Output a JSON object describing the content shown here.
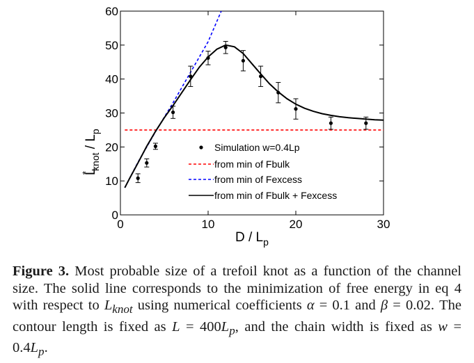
{
  "chart_data": {
    "type": "line",
    "xlabel": "D / L",
    "xlabel_sub": "p",
    "ylabel_base": "L",
    "ylabel_sup": "*",
    "ylabel_sub": "knot",
    "ylabel_rest": " / L",
    "ylabel_sub2": "p",
    "xlim": [
      0,
      30
    ],
    "ylim": [
      0,
      60
    ],
    "xticks": [
      0,
      10,
      20,
      30
    ],
    "yticks": [
      0,
      10,
      20,
      30,
      40,
      50,
      60
    ],
    "grid": false,
    "legend_position": "lower-center",
    "series": [
      {
        "name": "Simulation w=0.4Lp",
        "kind": "points",
        "color": "#000000",
        "points": [
          {
            "x": 2,
            "y": 10.8,
            "err": 1.3
          },
          {
            "x": 3,
            "y": 15.3,
            "err": 1.2
          },
          {
            "x": 4,
            "y": 20.2,
            "err": 0.9
          },
          {
            "x": 6,
            "y": 30.2,
            "err": 1.8
          },
          {
            "x": 8,
            "y": 40.8,
            "err": 3.0
          },
          {
            "x": 10,
            "y": 46.2,
            "err": 2.0
          },
          {
            "x": 12,
            "y": 49.3,
            "err": 1.8
          },
          {
            "x": 14,
            "y": 45.4,
            "err": 3.0
          },
          {
            "x": 16,
            "y": 40.8,
            "err": 3.0
          },
          {
            "x": 18,
            "y": 36.0,
            "err": 3.0
          },
          {
            "x": 20,
            "y": 31.2,
            "err": 3.0
          },
          {
            "x": 24,
            "y": 27.0,
            "err": 1.8
          },
          {
            "x": 28,
            "y": 27.0,
            "err": 1.8
          }
        ]
      },
      {
        "name": "from min of Fbulk",
        "kind": "line",
        "dash": "red-dashed",
        "color": "#ff0000",
        "x": [
          0.5,
          30
        ],
        "y": [
          25,
          25
        ]
      },
      {
        "name": "from min of Fexcess",
        "kind": "line",
        "dash": "blue-dashed",
        "color": "#0000ff",
        "x": [
          0.5,
          2,
          4,
          6,
          8,
          10,
          11.5
        ],
        "y": [
          8,
          15.5,
          24.5,
          33,
          42,
          51,
          60
        ]
      },
      {
        "name": "from min of Fbulk + Fexcess",
        "kind": "line",
        "dash": "solid",
        "color": "#000000",
        "x": [
          0.5,
          1,
          2,
          3,
          4,
          5,
          6,
          7,
          8,
          9,
          10,
          11,
          12,
          13,
          14,
          15,
          16,
          17,
          18,
          19,
          20,
          21,
          22,
          23,
          24,
          25,
          26,
          27,
          28,
          29,
          30
        ],
        "y": [
          8,
          10.5,
          15.3,
          20.2,
          24.6,
          28.6,
          32.2,
          36,
          39.8,
          43.5,
          46.5,
          48.8,
          50,
          49.5,
          47.5,
          44.5,
          41.5,
          38.6,
          36.2,
          34.2,
          32.6,
          31.4,
          30.5,
          29.8,
          29.3,
          28.9,
          28.6,
          28.4,
          28.2,
          28.0,
          27.9
        ]
      }
    ]
  },
  "caption": {
    "figure_label": "Figure 3.",
    "text_before_lknot": " Most probable size of a trefoil knot as a function of the channel size. The solid line corresponds to the minimization of free energy in eq 4 with respect to ",
    "lknot_base": "L",
    "lknot_sub": "knot",
    "text_after_lknot": " using numerical coefficients ",
    "alpha": "α",
    "alpha_value": " = 0.1 and ",
    "beta": "β",
    "beta_value": " = 0.02. The contour length is fixed as ",
    "L_symbol": "L",
    "L_value_prefix": " = 400",
    "L_value_base": "L",
    "L_value_sub": "p",
    "text_width": ", and the chain width is fixed as ",
    "w_symbol": "w",
    "w_value_prefix": " = 0.4",
    "w_value_base": "L",
    "w_value_sub": "p",
    "end": "."
  }
}
